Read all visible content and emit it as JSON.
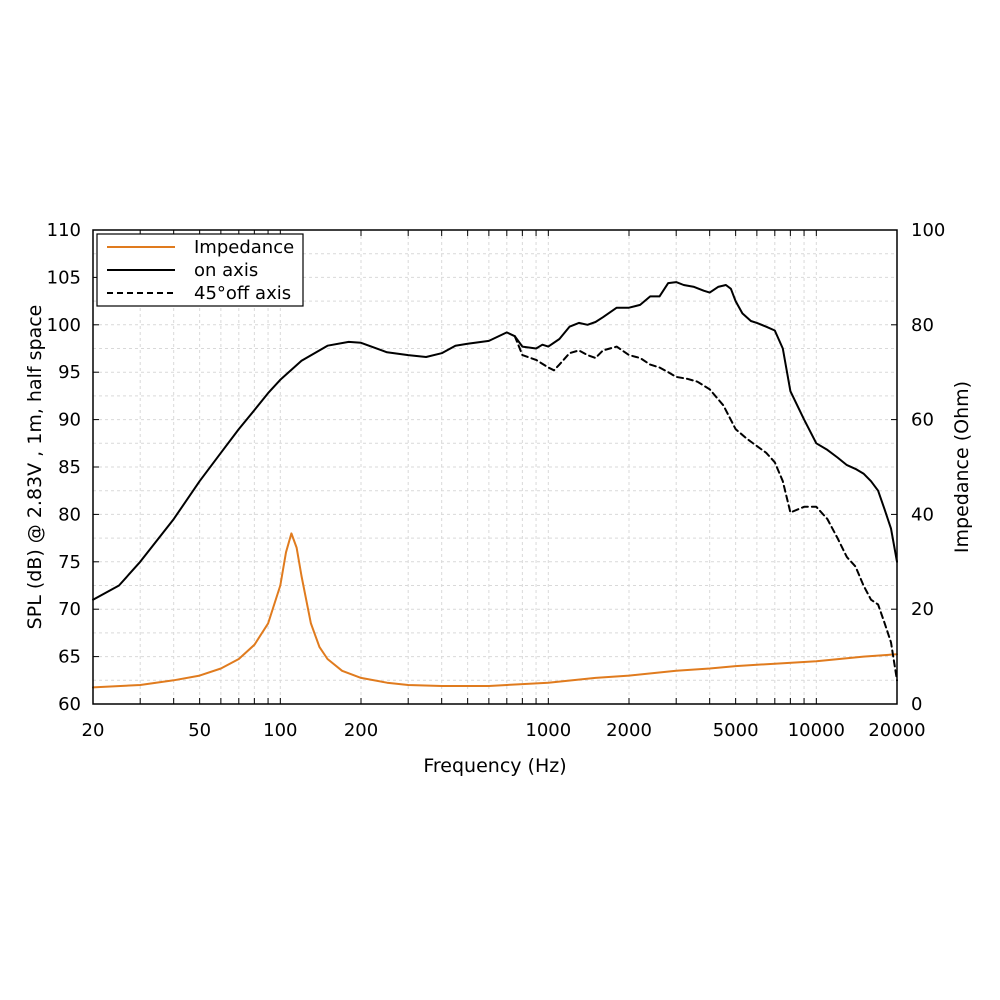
{
  "chart_data": {
    "type": "line",
    "xscale": "log",
    "xlabel": "Frequency (Hz)",
    "ylabel_left": "SPL (dB) @ 2.83V , 1m, half space",
    "ylabel_right": "Impedance (Ohm)",
    "xlim": [
      20,
      20000
    ],
    "ylim_left": [
      60,
      110
    ],
    "ylim_right": [
      0,
      100
    ],
    "x_ticks": [
      20,
      50,
      100,
      200,
      1000,
      2000,
      5000,
      10000,
      20000
    ],
    "x_tick_labels": [
      "20",
      "50",
      "100",
      "200",
      "1000",
      "2000",
      "5000",
      "10000",
      "20000"
    ],
    "y_left_ticks": [
      60,
      65,
      70,
      75,
      80,
      85,
      90,
      95,
      100,
      105,
      110
    ],
    "y_left_tick_labels": [
      "60",
      "65",
      "70",
      "75",
      "80",
      "85",
      "90",
      "95",
      "100",
      "105",
      "110"
    ],
    "y_right_ticks": [
      0,
      20,
      40,
      60,
      80,
      100
    ],
    "y_right_tick_labels": [
      "0",
      "20",
      "40",
      "60",
      "80",
      "100"
    ],
    "grid": true,
    "legend_position": "top-left",
    "series": [
      {
        "name": "Impedance",
        "axis": "right",
        "color": "#e07b1e",
        "dash": "solid",
        "points": [
          [
            20,
            3.5
          ],
          [
            30,
            4
          ],
          [
            40,
            5
          ],
          [
            50,
            6
          ],
          [
            60,
            7.5
          ],
          [
            70,
            9.5
          ],
          [
            80,
            12.5
          ],
          [
            90,
            17
          ],
          [
            100,
            25
          ],
          [
            105,
            32
          ],
          [
            110,
            36
          ],
          [
            115,
            33
          ],
          [
            120,
            27
          ],
          [
            130,
            17
          ],
          [
            140,
            12
          ],
          [
            150,
            9.5
          ],
          [
            170,
            7
          ],
          [
            200,
            5.5
          ],
          [
            250,
            4.5
          ],
          [
            300,
            4
          ],
          [
            400,
            3.8
          ],
          [
            500,
            3.8
          ],
          [
            600,
            3.8
          ],
          [
            700,
            4
          ],
          [
            800,
            4.2
          ],
          [
            1000,
            4.5
          ],
          [
            1500,
            5.5
          ],
          [
            2000,
            6
          ],
          [
            3000,
            7
          ],
          [
            4000,
            7.5
          ],
          [
            5000,
            8
          ],
          [
            7000,
            8.5
          ],
          [
            10000,
            9
          ],
          [
            15000,
            10
          ],
          [
            20000,
            10.5
          ]
        ]
      },
      {
        "name": "on axis",
        "axis": "left",
        "color": "#000000",
        "dash": "solid",
        "points": [
          [
            20,
            71
          ],
          [
            25,
            72.5
          ],
          [
            30,
            75
          ],
          [
            40,
            79.5
          ],
          [
            50,
            83.5
          ],
          [
            60,
            86.5
          ],
          [
            70,
            89
          ],
          [
            80,
            91
          ],
          [
            90,
            92.8
          ],
          [
            100,
            94.2
          ],
          [
            120,
            96.2
          ],
          [
            150,
            97.8
          ],
          [
            180,
            98.2
          ],
          [
            200,
            98.1
          ],
          [
            250,
            97.1
          ],
          [
            300,
            96.8
          ],
          [
            350,
            96.6
          ],
          [
            400,
            97
          ],
          [
            450,
            97.8
          ],
          [
            500,
            98
          ],
          [
            600,
            98.3
          ],
          [
            700,
            99.2
          ],
          [
            750,
            98.8
          ],
          [
            800,
            97.7
          ],
          [
            900,
            97.5
          ],
          [
            950,
            97.9
          ],
          [
            1000,
            97.7
          ],
          [
            1100,
            98.5
          ],
          [
            1200,
            99.8
          ],
          [
            1300,
            100.2
          ],
          [
            1400,
            100
          ],
          [
            1500,
            100.3
          ],
          [
            1600,
            100.8
          ],
          [
            1800,
            101.8
          ],
          [
            2000,
            101.8
          ],
          [
            2200,
            102.1
          ],
          [
            2400,
            103
          ],
          [
            2600,
            103
          ],
          [
            2800,
            104.4
          ],
          [
            3000,
            104.5
          ],
          [
            3200,
            104.2
          ],
          [
            3500,
            104
          ],
          [
            3800,
            103.6
          ],
          [
            4000,
            103.4
          ],
          [
            4300,
            104
          ],
          [
            4600,
            104.2
          ],
          [
            4800,
            103.8
          ],
          [
            5000,
            102.5
          ],
          [
            5300,
            101.2
          ],
          [
            5700,
            100.4
          ],
          [
            6000,
            100.2
          ],
          [
            6500,
            99.8
          ],
          [
            7000,
            99.4
          ],
          [
            7500,
            97.5
          ],
          [
            8000,
            93
          ],
          [
            9000,
            90
          ],
          [
            10000,
            87.5
          ],
          [
            11000,
            86.8
          ],
          [
            12000,
            86
          ],
          [
            13000,
            85.2
          ],
          [
            14000,
            84.8
          ],
          [
            15000,
            84.3
          ],
          [
            16000,
            83.5
          ],
          [
            17000,
            82.5
          ],
          [
            18000,
            80.5
          ],
          [
            19000,
            78.5
          ],
          [
            20000,
            75
          ]
        ]
      },
      {
        "name": "45°off axis",
        "axis": "left",
        "color": "#000000",
        "dash": "dashed",
        "points": [
          [
            750,
            98.8
          ],
          [
            800,
            96.8
          ],
          [
            900,
            96.3
          ],
          [
            1000,
            95.5
          ],
          [
            1050,
            95.2
          ],
          [
            1100,
            95.8
          ],
          [
            1200,
            97
          ],
          [
            1300,
            97.3
          ],
          [
            1400,
            96.8
          ],
          [
            1500,
            96.5
          ],
          [
            1600,
            97.3
          ],
          [
            1800,
            97.7
          ],
          [
            2000,
            96.8
          ],
          [
            2200,
            96.5
          ],
          [
            2400,
            95.8
          ],
          [
            2600,
            95.5
          ],
          [
            2800,
            95
          ],
          [
            3000,
            94.5
          ],
          [
            3300,
            94.3
          ],
          [
            3600,
            94
          ],
          [
            4000,
            93.2
          ],
          [
            4500,
            91.5
          ],
          [
            5000,
            89
          ],
          [
            5500,
            88
          ],
          [
            6000,
            87.2
          ],
          [
            6500,
            86.5
          ],
          [
            7000,
            85.5
          ],
          [
            7500,
            83.5
          ],
          [
            8000,
            80.2
          ],
          [
            9000,
            80.8
          ],
          [
            10000,
            80.8
          ],
          [
            11000,
            79.5
          ],
          [
            12000,
            77.5
          ],
          [
            13000,
            75.5
          ],
          [
            14000,
            74.5
          ],
          [
            15000,
            72.5
          ],
          [
            16000,
            71
          ],
          [
            17000,
            70.5
          ],
          [
            18000,
            68.5
          ],
          [
            19000,
            66.5
          ],
          [
            20000,
            62.5
          ]
        ]
      }
    ]
  }
}
